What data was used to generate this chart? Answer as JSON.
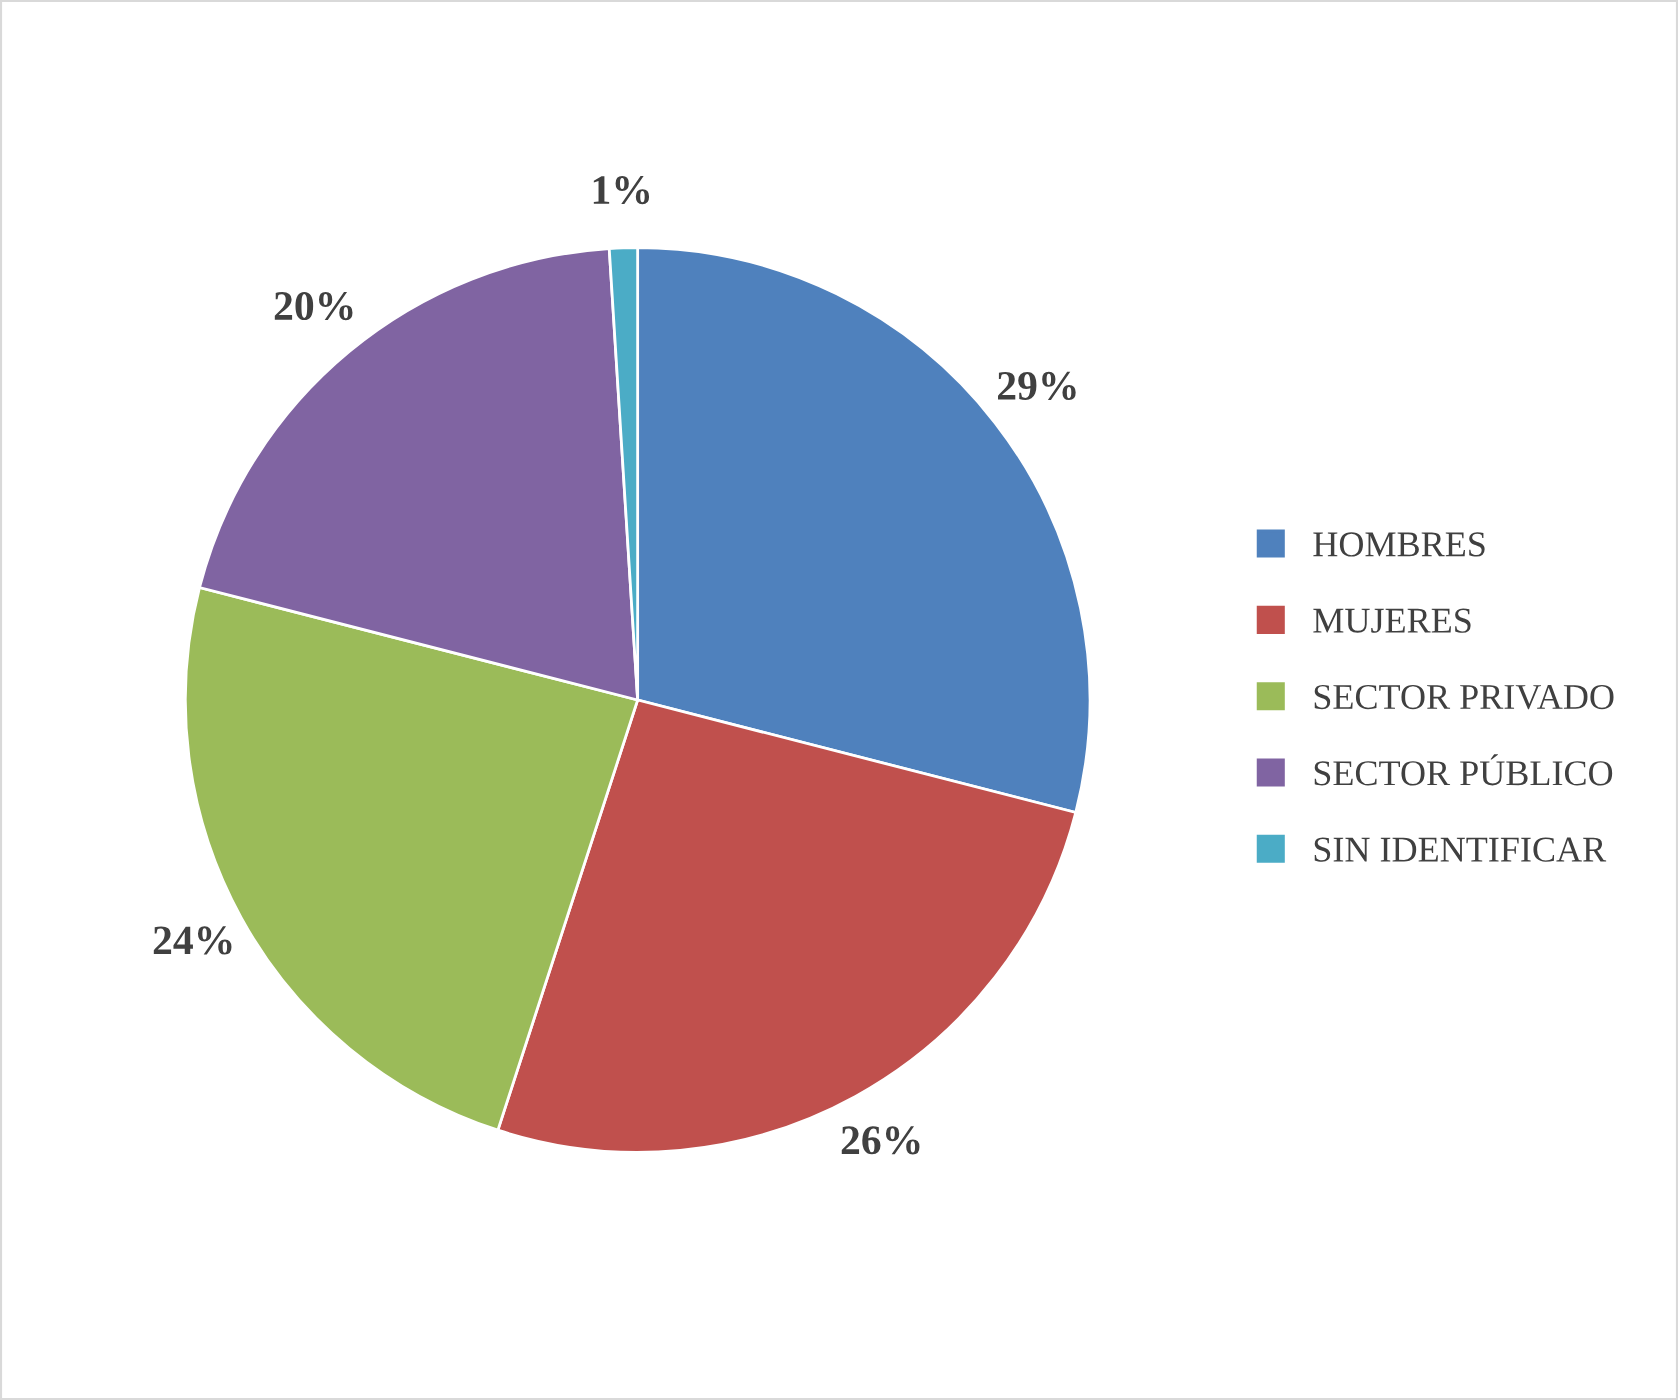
{
  "chart_data": {
    "type": "pie",
    "categories": [
      "HOMBRES",
      "MUJERES",
      "SECTOR PRIVADO",
      "SECTOR PÚBLICO",
      "SIN IDENTIFICAR"
    ],
    "values": [
      29,
      26,
      24,
      20,
      1
    ],
    "value_labels": [
      "29%",
      "26%",
      "24%",
      "20%",
      "1%"
    ],
    "colors": [
      "#4f81bd",
      "#c0504d",
      "#9bbb59",
      "#8064a2",
      "#4bacc6"
    ],
    "legend": "right"
  }
}
